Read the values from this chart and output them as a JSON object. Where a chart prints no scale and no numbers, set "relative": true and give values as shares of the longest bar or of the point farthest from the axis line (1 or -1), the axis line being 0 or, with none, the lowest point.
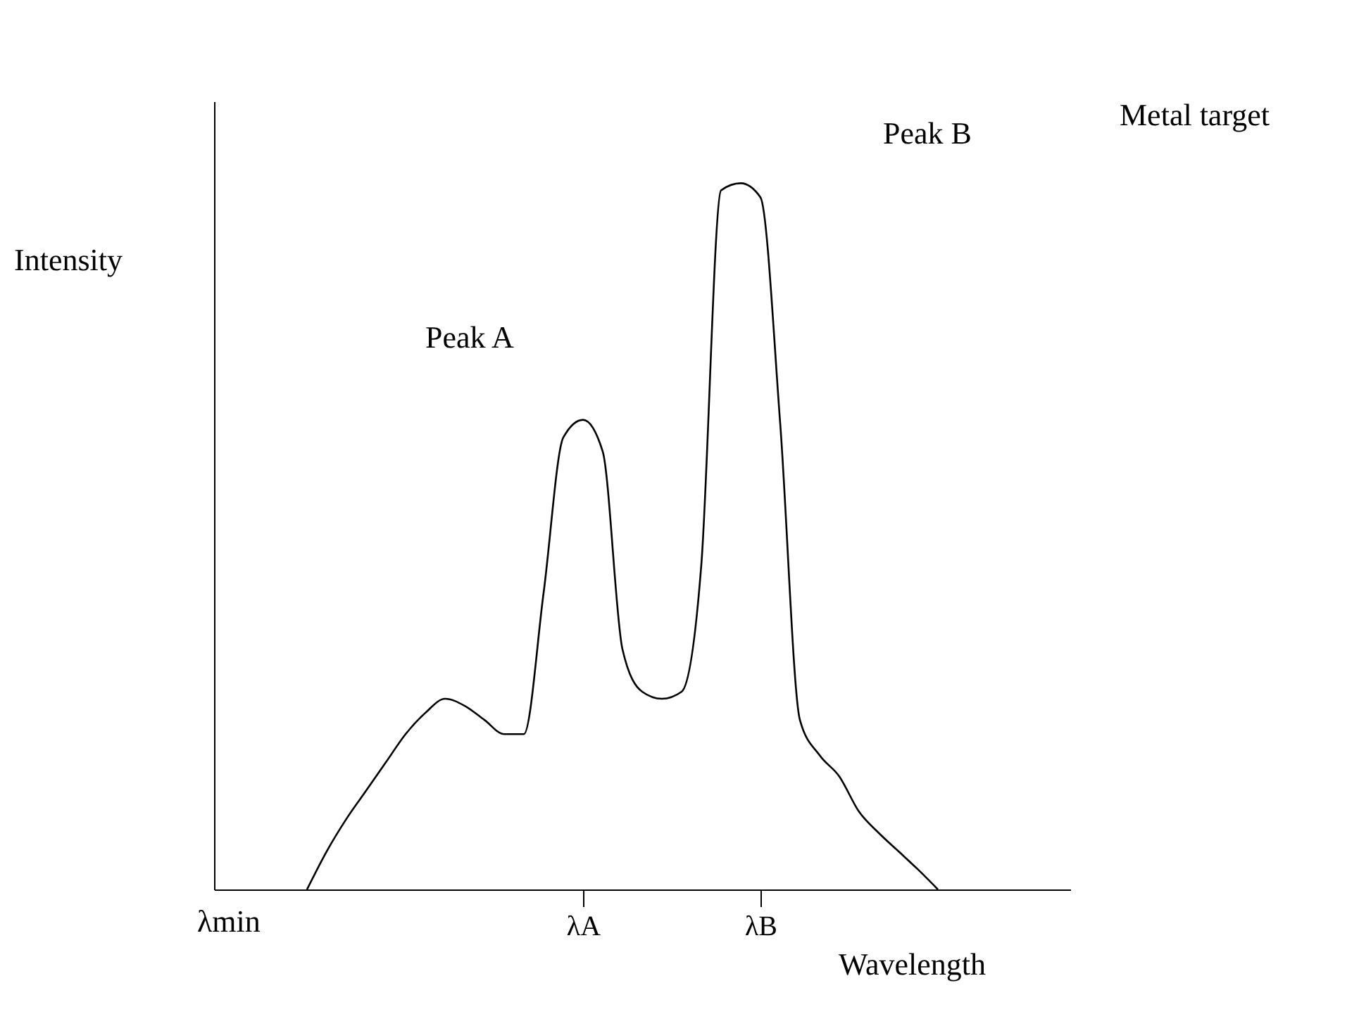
{
  "chart_data": {
    "type": "line",
    "relative": true,
    "xlabel": "Wavelength",
    "categories": [
      null,
      null,
      null,
      null,
      null,
      null,
      null,
      null,
      null,
      null,
      null,
      null,
      null,
      null,
      "λA",
      null,
      null,
      null,
      null,
      null,
      null,
      null,
      null,
      "λB",
      null,
      null,
      null,
      null,
      null,
      null,
      null,
      null,
      null
    ],
    "series": [
      {
        "color": "#000000",
        "values": [
          0,
          0.054,
          0.1,
          0.14,
          0.18,
          0.22,
          0.25,
          0.27,
          0.26,
          0.24,
          0.22,
          0.22,
          0.42,
          0.64,
          0.665,
          0.62,
          0.34,
          0.28,
          0.27,
          0.28,
          0.46,
          0.99,
          1.0,
          0.98,
          0.66,
          0.24,
          0.19,
          0.16,
          0.11,
          0.08,
          0.054,
          0.028,
          0
        ]
      }
    ],
    "annotations": [
      "Peak A",
      "Peak B",
      "Metal target",
      "λmin",
      "Intensity"
    ],
    "grid": false,
    "marker": "none",
    "line_style": "solid"
  }
}
